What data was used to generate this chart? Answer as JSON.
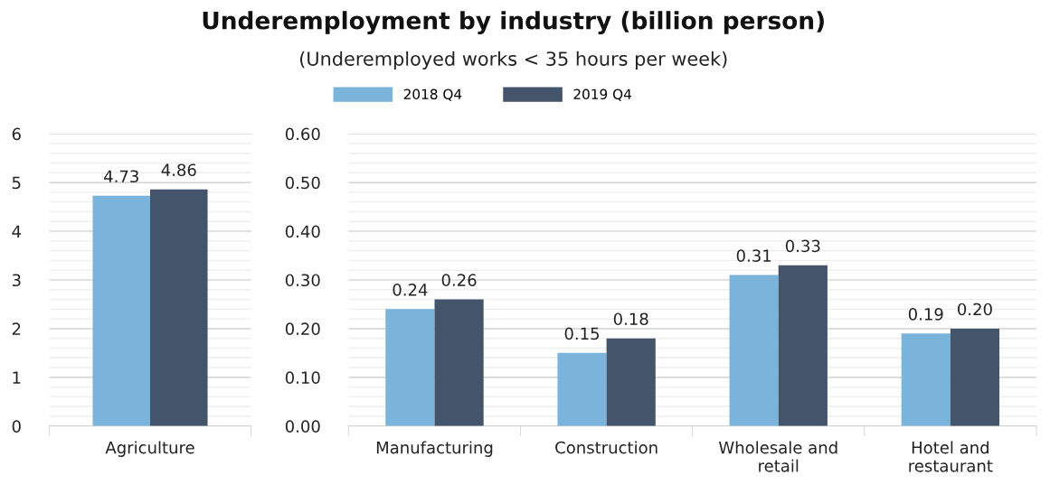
{
  "chart_data": [
    {
      "type": "bar",
      "categories": [
        "Agriculture"
      ],
      "ylim": [
        0,
        6
      ],
      "yticks": [
        0,
        1,
        2,
        3,
        4,
        5,
        6
      ],
      "grid": "y",
      "series": [
        {
          "color": "#7ab4da",
          "values": [
            4.73
          ],
          "value_labels": [
            "4.73"
          ]
        },
        {
          "color": "#44546a",
          "values": [
            4.86
          ],
          "value_labels": [
            "4.86"
          ]
        }
      ]
    },
    {
      "type": "bar",
      "title": "Underemployment by industry (billion person)",
      "subtitle": "(Underemployed works < 35 hours per week)",
      "legend": "top",
      "categories": [
        "Manufacturing",
        "Construction",
        "Wholesale and\nretail",
        "Hotel and\nrestaurant"
      ],
      "ylim": [
        0,
        0.6
      ],
      "yticks": [
        {
          "value": 0,
          "label": "0.00"
        },
        {
          "value": 0.1,
          "label": "0.10"
        },
        {
          "value": 0.2,
          "label": "0.20"
        },
        {
          "value": 0.3,
          "label": "0.30"
        },
        {
          "value": 0.4,
          "label": "0.40"
        },
        {
          "value": 0.5,
          "label": "0.50"
        },
        {
          "value": 0.6,
          "label": "0.60"
        }
      ],
      "grid": "y",
      "series": [
        {
          "name": "2018 Q4",
          "color": "#7ab4da",
          "values": [
            0.24,
            0.15,
            0.31,
            0.19
          ],
          "value_labels": [
            "0.24",
            "0.15",
            "0.31",
            "0.19"
          ]
        },
        {
          "name": "2019 Q4",
          "color": "#44546a",
          "values": [
            0.26,
            0.18,
            0.33,
            0.2
          ],
          "value_labels": [
            "0.26",
            "0.18",
            "0.33",
            "0.20"
          ]
        }
      ]
    }
  ]
}
